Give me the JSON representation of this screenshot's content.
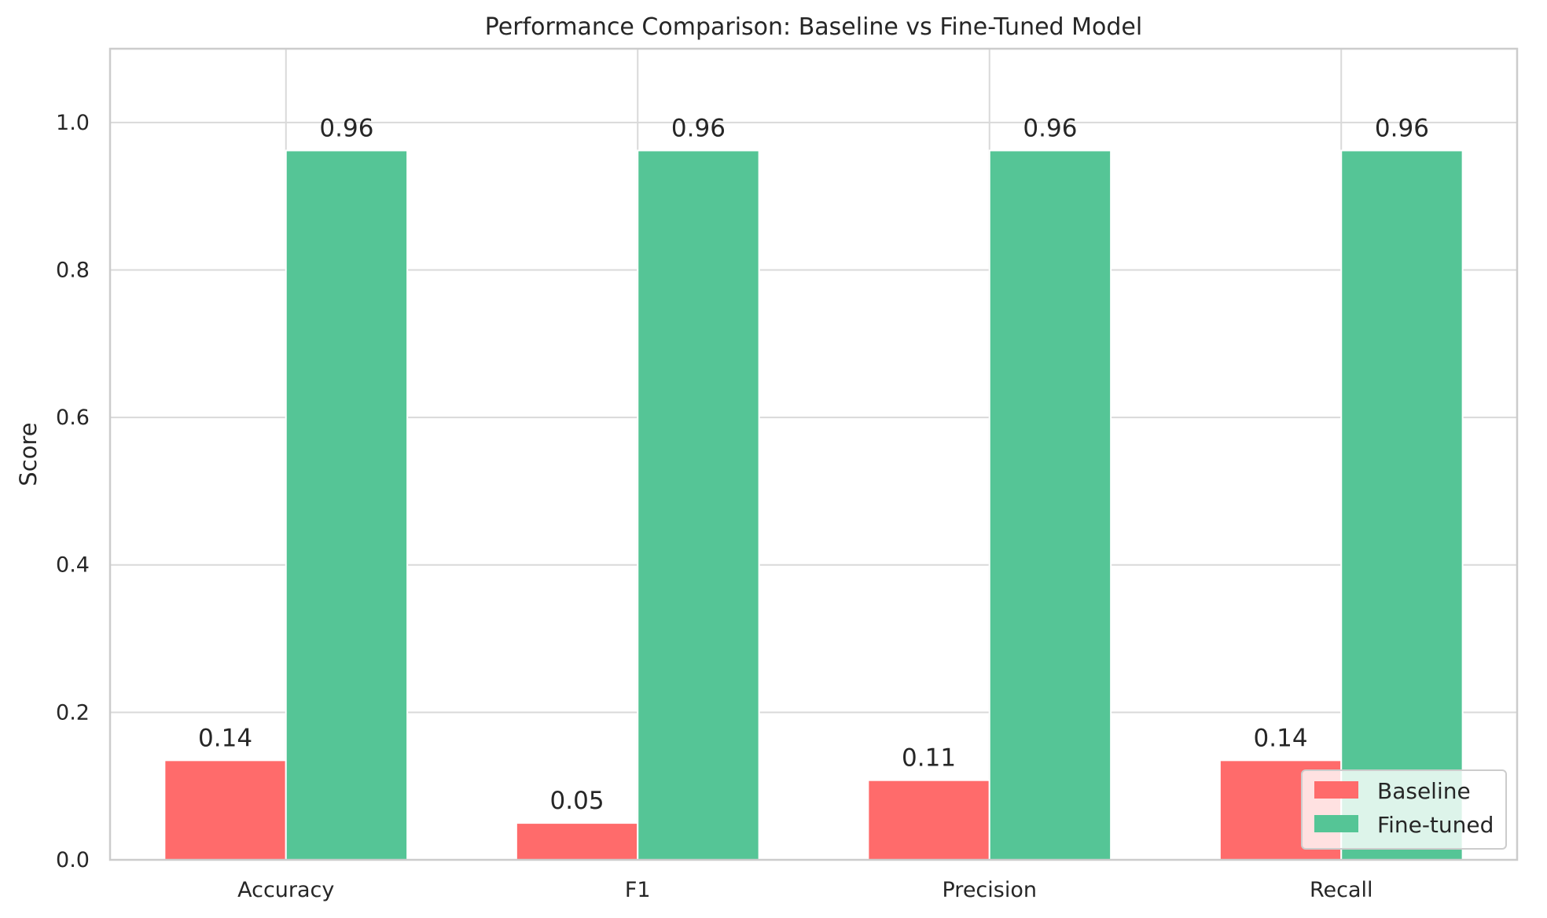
{
  "chart_data": {
    "type": "bar",
    "title": "Performance Comparison: Baseline vs Fine-Tuned Model",
    "xlabel": "",
    "ylabel": "Score",
    "categories": [
      "Accuracy",
      "F1",
      "Precision",
      "Recall"
    ],
    "series": [
      {
        "name": "Baseline",
        "color": "#ff6b6b",
        "values": [
          0.135,
          0.05,
          0.108,
          0.135
        ],
        "labels": [
          "0.14",
          "0.05",
          "0.11",
          "0.14"
        ]
      },
      {
        "name": "Fine-tuned",
        "color": "#55c596",
        "values": [
          0.962,
          0.962,
          0.962,
          0.962
        ],
        "labels": [
          "0.96",
          "0.96",
          "0.96",
          "0.96"
        ]
      }
    ],
    "ylim": [
      0,
      1.1
    ],
    "yticks": [
      0.0,
      0.2,
      0.4,
      0.6,
      0.8,
      1.0
    ],
    "ytick_labels": [
      "0.0",
      "0.2",
      "0.4",
      "0.6",
      "0.8",
      "1.0"
    ],
    "grid": true,
    "legend_position": "bottom-right"
  }
}
